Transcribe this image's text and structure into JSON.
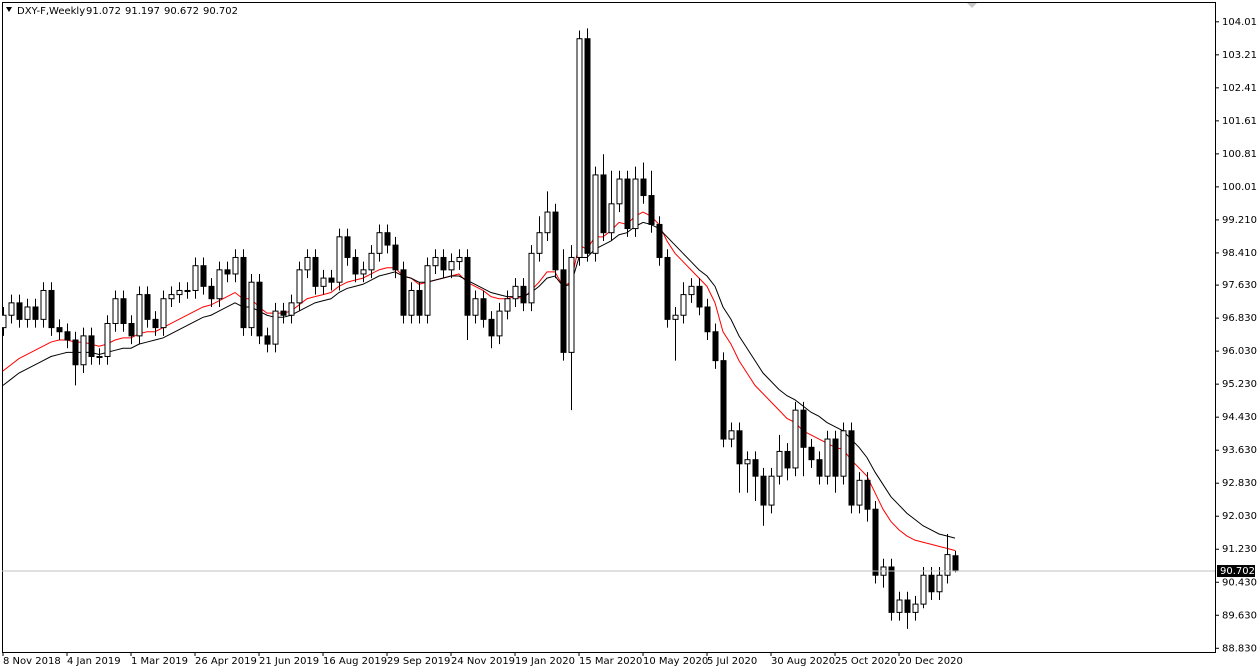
{
  "chart_data": {
    "type": "candlestick",
    "title": "DXY-F,Weekly",
    "categories": [
      "8 Nov 2018",
      null,
      null,
      null,
      null,
      null,
      null,
      null,
      "4 Jan 2019",
      null,
      null,
      null,
      null,
      null,
      null,
      null,
      "1 Mar 2019",
      null,
      null,
      null,
      null,
      null,
      null,
      null,
      "26 Apr 2019",
      null,
      null,
      null,
      null,
      null,
      null,
      null,
      "21 Jun 2019",
      null,
      null,
      null,
      null,
      null,
      null,
      null,
      "16 Aug 2019",
      null,
      null,
      null,
      null,
      null,
      null,
      null,
      "29 Sep 2019",
      null,
      null,
      null,
      null,
      null,
      null,
      null,
      "24 Nov 2019",
      null,
      null,
      null,
      null,
      null,
      null,
      null,
      "19 Jan 2020",
      null,
      null,
      null,
      null,
      null,
      null,
      null,
      "15 Mar 2020",
      null,
      null,
      null,
      null,
      null,
      null,
      null,
      "10 May 2020",
      null,
      null,
      null,
      null,
      null,
      null,
      null,
      "5 Jul 2020",
      null,
      null,
      null,
      null,
      null,
      null,
      null,
      "30 Aug 2020",
      null,
      null,
      null,
      null,
      null,
      null,
      null,
      "25 Oct 2020",
      null,
      null,
      null,
      null,
      null,
      null,
      null,
      "20 Dec 2020",
      null,
      null,
      null,
      null,
      null,
      null,
      null
    ],
    "open": [
      96.6,
      96.9,
      97.2,
      96.8,
      97.1,
      96.8,
      97.5,
      96.6,
      96.5,
      96.3,
      95.7,
      96.4,
      95.9,
      95.9,
      96.7,
      97.3,
      96.7,
      96.4,
      97.4,
      96.8,
      96.6,
      97.3,
      97.4,
      97.5,
      97.5,
      98.1,
      97.6,
      97.3,
      98.0,
      97.9,
      98.3,
      96.6,
      97.7,
      96.4,
      96.2,
      97.0,
      96.9,
      97.2,
      98.0,
      98.3,
      97.6,
      97.8,
      97.7,
      98.8,
      98.3,
      97.9,
      98.0,
      98.4,
      98.9,
      98.6,
      98.0,
      96.9,
      97.5,
      96.9,
      98.1,
      98.3,
      98.0,
      98.2,
      98.3,
      96.9,
      97.3,
      96.8,
      96.4,
      97.0,
      97.3,
      97.6,
      97.2,
      98.4,
      98.9,
      99.4,
      98.0,
      96.0,
      98.3,
      103.6,
      98.4,
      100.3,
      98.9,
      99.6,
      100.2,
      99.0,
      100.2,
      99.8,
      99.1,
      98.3,
      96.8,
      96.9,
      97.4,
      97.6,
      97.1,
      96.5,
      95.8,
      93.9,
      94.1,
      93.3,
      93.4,
      93.0,
      92.3,
      93.0,
      93.6,
      93.2,
      94.6,
      93.7,
      93.4,
      93.0,
      93.9,
      93.0,
      94.1,
      92.3,
      92.9,
      92.2,
      90.6,
      90.8,
      89.7,
      90.0,
      89.7,
      89.9,
      90.6,
      90.2,
      90.6,
      91.072
    ],
    "high": [
      97.1,
      97.4,
      97.4,
      97.3,
      97.3,
      97.7,
      97.7,
      96.8,
      96.7,
      96.5,
      96.6,
      96.6,
      96.1,
      96.9,
      97.5,
      97.5,
      96.9,
      97.6,
      97.6,
      97.0,
      97.5,
      97.6,
      97.7,
      97.7,
      98.3,
      98.3,
      97.8,
      98.2,
      98.2,
      98.5,
      98.5,
      97.9,
      97.9,
      96.6,
      97.2,
      97.2,
      97.4,
      98.2,
      98.5,
      98.5,
      98.0,
      98.0,
      99.0,
      99.0,
      98.5,
      98.2,
      98.6,
      99.1,
      99.1,
      98.8,
      98.2,
      97.7,
      97.7,
      98.3,
      98.5,
      98.5,
      98.4,
      98.5,
      98.5,
      97.5,
      97.5,
      97.0,
      97.2,
      97.5,
      97.8,
      97.8,
      98.6,
      99.3,
      99.9,
      99.6,
      98.5,
      98.6,
      103.8,
      103.85,
      100.5,
      100.8,
      100.4,
      100.4,
      100.4,
      100.5,
      100.6,
      100.4,
      99.3,
      98.5,
      97.1,
      97.7,
      97.8,
      97.8,
      97.3,
      96.7,
      96.0,
      94.3,
      94.3,
      93.6,
      93.6,
      93.2,
      93.2,
      94.0,
      93.8,
      94.8,
      94.8,
      93.9,
      93.6,
      94.1,
      94.1,
      94.3,
      94.3,
      93.1,
      93.1,
      92.4,
      91.0,
      91.0,
      90.2,
      90.2,
      90.1,
      90.8,
      90.8,
      90.8,
      91.6,
      91.197
    ],
    "low": [
      96.4,
      96.7,
      96.6,
      96.6,
      96.6,
      96.6,
      96.4,
      96.3,
      96.1,
      95.2,
      95.5,
      95.7,
      95.7,
      95.7,
      96.5,
      96.5,
      96.2,
      96.2,
      96.6,
      96.4,
      96.4,
      97.1,
      97.2,
      97.3,
      97.3,
      97.4,
      97.1,
      97.1,
      97.7,
      97.7,
      96.4,
      96.4,
      96.2,
      96.0,
      96.0,
      96.7,
      96.7,
      97.0,
      97.8,
      97.4,
      97.4,
      97.5,
      97.5,
      98.1,
      97.7,
      97.7,
      97.8,
      98.2,
      98.4,
      97.8,
      96.7,
      96.7,
      96.7,
      96.7,
      97.9,
      97.8,
      97.8,
      98.0,
      96.3,
      96.7,
      96.6,
      96.1,
      96.2,
      96.8,
      97.1,
      97.0,
      97.0,
      98.2,
      98.7,
      97.8,
      95.8,
      94.6,
      98.1,
      98.2,
      98.2,
      98.7,
      98.7,
      99.4,
      98.8,
      98.8,
      99.6,
      98.9,
      98.1,
      96.6,
      95.8,
      96.7,
      97.2,
      96.9,
      96.3,
      95.6,
      93.7,
      93.7,
      92.6,
      92.6,
      92.4,
      91.8,
      92.1,
      92.8,
      92.9,
      93.0,
      93.0,
      93.2,
      92.8,
      92.8,
      92.6,
      92.8,
      92.1,
      92.1,
      91.9,
      90.4,
      90.3,
      89.5,
      89.5,
      89.3,
      89.5,
      89.8,
      90.0,
      90.0,
      90.4,
      90.672
    ],
    "close": [
      96.9,
      97.2,
      96.8,
      97.1,
      96.8,
      97.5,
      96.6,
      96.5,
      96.3,
      95.7,
      96.4,
      95.9,
      95.9,
      96.7,
      97.3,
      96.7,
      96.4,
      97.4,
      96.8,
      96.6,
      97.3,
      97.4,
      97.5,
      97.5,
      98.1,
      97.6,
      97.3,
      98.0,
      97.9,
      98.3,
      96.6,
      97.7,
      96.4,
      96.2,
      97.0,
      96.9,
      97.2,
      98.0,
      98.3,
      97.6,
      97.8,
      97.7,
      98.8,
      98.3,
      97.9,
      98.0,
      98.4,
      98.9,
      98.6,
      98.0,
      96.9,
      97.5,
      96.9,
      98.1,
      98.3,
      98.0,
      98.2,
      98.3,
      96.9,
      97.3,
      96.8,
      96.4,
      97.0,
      97.3,
      97.6,
      97.2,
      98.4,
      98.9,
      99.4,
      98.0,
      96.0,
      98.3,
      103.6,
      98.4,
      100.3,
      98.9,
      99.6,
      100.2,
      99.0,
      100.2,
      99.8,
      99.1,
      98.3,
      96.8,
      96.9,
      97.4,
      97.6,
      97.1,
      96.5,
      95.8,
      93.9,
      94.1,
      93.3,
      93.4,
      93.0,
      92.3,
      93.0,
      93.6,
      93.2,
      94.6,
      93.7,
      93.4,
      93.0,
      93.9,
      93.0,
      94.1,
      92.3,
      92.9,
      92.2,
      90.6,
      90.8,
      89.7,
      90.0,
      89.7,
      89.9,
      90.6,
      90.2,
      90.6,
      91.1,
      90.702
    ],
    "up_color": "#ffffff",
    "down_color": "#000000",
    "outline_color": "#000000",
    "overlays": [
      {
        "color": "#ff0000",
        "values": [
          95.55,
          95.7,
          95.85,
          95.95,
          96.05,
          96.15,
          96.25,
          96.3,
          96.3,
          96.25,
          96.25,
          96.2,
          96.15,
          96.2,
          96.3,
          96.35,
          96.35,
          96.45,
          96.5,
          96.5,
          96.6,
          96.7,
          96.8,
          96.9,
          97.0,
          97.1,
          97.15,
          97.25,
          97.35,
          97.45,
          97.3,
          97.3,
          97.1,
          96.95,
          96.95,
          96.95,
          97.0,
          97.15,
          97.3,
          97.35,
          97.4,
          97.45,
          97.6,
          97.7,
          97.75,
          97.8,
          97.9,
          98.0,
          98.05,
          98.05,
          97.85,
          97.8,
          97.65,
          97.7,
          97.75,
          97.8,
          97.85,
          97.9,
          97.7,
          97.6,
          97.5,
          97.35,
          97.3,
          97.3,
          97.35,
          97.3,
          97.5,
          97.7,
          97.95,
          97.95,
          97.6,
          97.7,
          98.6,
          98.5,
          98.8,
          98.8,
          98.95,
          99.15,
          99.1,
          99.3,
          99.4,
          99.3,
          99.1,
          98.7,
          98.4,
          98.2,
          98.0,
          97.8,
          97.6,
          97.2,
          96.5,
          96.2,
          95.8,
          95.5,
          95.2,
          95.0,
          94.8,
          94.6,
          94.4,
          94.3,
          94.1,
          94.0,
          93.9,
          93.8,
          93.7,
          93.65,
          93.4,
          93.2,
          93.0,
          92.6,
          92.2,
          91.9,
          91.7,
          91.55,
          91.45,
          91.4,
          91.35,
          91.3,
          91.25,
          91.2
        ]
      },
      {
        "color": "#000000",
        "values": [
          95.2,
          95.35,
          95.5,
          95.6,
          95.7,
          95.8,
          95.9,
          95.95,
          96.0,
          96.0,
          96.0,
          96.0,
          95.95,
          96.0,
          96.05,
          96.1,
          96.1,
          96.2,
          96.25,
          96.3,
          96.35,
          96.45,
          96.55,
          96.65,
          96.75,
          96.85,
          96.9,
          97.0,
          97.1,
          97.2,
          97.1,
          97.1,
          97.0,
          96.9,
          96.85,
          96.85,
          96.9,
          97.0,
          97.1,
          97.2,
          97.25,
          97.3,
          97.45,
          97.55,
          97.6,
          97.65,
          97.75,
          97.85,
          97.9,
          97.95,
          97.85,
          97.8,
          97.7,
          97.7,
          97.75,
          97.8,
          97.85,
          97.85,
          97.75,
          97.65,
          97.55,
          97.45,
          97.4,
          97.35,
          97.35,
          97.35,
          97.45,
          97.6,
          97.8,
          97.85,
          97.6,
          97.65,
          98.3,
          98.3,
          98.5,
          98.6,
          98.7,
          98.85,
          98.9,
          99.05,
          99.15,
          99.1,
          99.0,
          98.8,
          98.6,
          98.4,
          98.2,
          98.0,
          97.85,
          97.6,
          97.1,
          96.8,
          96.4,
          96.1,
          95.8,
          95.5,
          95.3,
          95.1,
          94.95,
          94.85,
          94.7,
          94.55,
          94.45,
          94.3,
          94.2,
          94.1,
          93.9,
          93.7,
          93.45,
          93.1,
          92.8,
          92.5,
          92.3,
          92.1,
          91.95,
          91.8,
          91.7,
          91.6,
          91.55,
          91.5
        ]
      }
    ],
    "ylim": [
      88.74,
      104.49
    ],
    "yticks": [
      {
        "value": 104.01,
        "label": "104.010"
      },
      {
        "value": 103.21,
        "label": "103.210"
      },
      {
        "value": 102.41,
        "label": "102.410"
      },
      {
        "value": 101.61,
        "label": "101.610"
      },
      {
        "value": 100.81,
        "label": "100.810"
      },
      {
        "value": 100.01,
        "label": "100.010"
      },
      {
        "value": 99.21,
        "label": "99.210"
      },
      {
        "value": 98.41,
        "label": "98.410"
      },
      {
        "value": 97.63,
        "label": "97.630"
      },
      {
        "value": 96.83,
        "label": "96.830"
      },
      {
        "value": 96.03,
        "label": "96.030"
      },
      {
        "value": 95.23,
        "label": "95.230"
      },
      {
        "value": 94.43,
        "label": "94.430"
      },
      {
        "value": 93.63,
        "label": "93.630"
      },
      {
        "value": 92.83,
        "label": "92.830"
      },
      {
        "value": 92.03,
        "label": "92.030"
      },
      {
        "value": 91.23,
        "label": "91.230"
      },
      {
        "value": 90.43,
        "label": "90.430"
      },
      {
        "value": 89.63,
        "label": "89.630"
      },
      {
        "value": 88.83,
        "label": "88.830"
      }
    ],
    "grid": false,
    "price_line_color": "#c0c0c0"
  }
}
